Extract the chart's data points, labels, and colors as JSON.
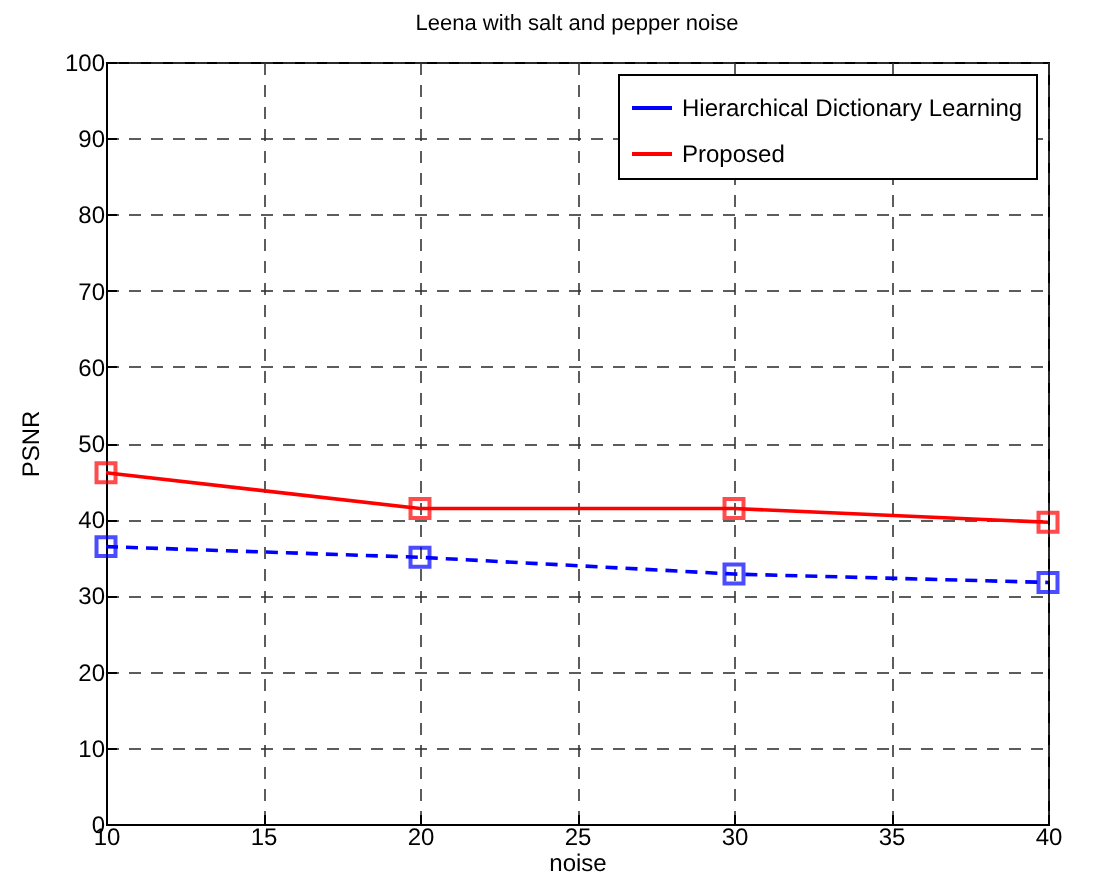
{
  "chart_data": {
    "type": "line",
    "title": "Leena with salt and pepper noise",
    "xlabel": "noise",
    "ylabel": "PSNR",
    "x": [
      10,
      20,
      30,
      40
    ],
    "series": [
      {
        "name": "Hierarchical Dictionary Learning",
        "color": "#0000ff",
        "line_style": "dashed",
        "values": [
          36.4,
          35.0,
          32.8,
          31.7
        ]
      },
      {
        "name": "Proposed",
        "color": "#ff0000",
        "line_style": "solid",
        "values": [
          46.1,
          41.4,
          41.4,
          39.6
        ]
      }
    ],
    "xlim": [
      10,
      40
    ],
    "xticks": [
      10,
      15,
      20,
      25,
      30,
      35,
      40
    ],
    "ylim": [
      0,
      100
    ],
    "yticks": [
      0,
      10,
      20,
      30,
      40,
      50,
      60,
      70,
      80,
      90,
      100
    ],
    "grid": true,
    "legend": "top right",
    "marker": "square"
  }
}
